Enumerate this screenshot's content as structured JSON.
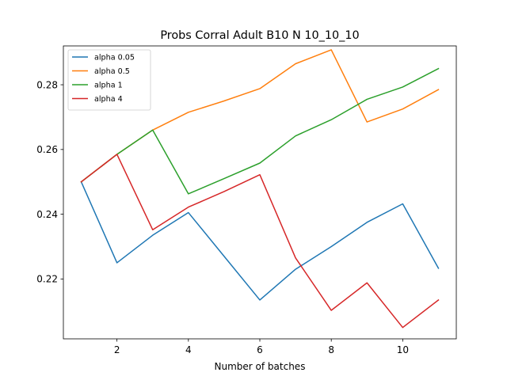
{
  "chart_data": {
    "type": "line",
    "title": "Probs Corral Adult B10 N 10_10_10",
    "xlabel": "Number of batches",
    "ylabel": "",
    "xlim": [
      0.5,
      11.5
    ],
    "ylim": [
      0.2015,
      0.292
    ],
    "x": [
      1,
      2,
      3,
      4,
      5,
      6,
      7,
      8,
      9,
      10,
      11
    ],
    "xticks": [
      2,
      4,
      6,
      8,
      10
    ],
    "xtick_labels": [
      "2",
      "4",
      "6",
      "8",
      "10"
    ],
    "yticks": [
      0.22,
      0.24,
      0.26,
      0.28
    ],
    "ytick_labels": [
      "0.22",
      "0.24",
      "0.26",
      "0.28"
    ],
    "grid": false,
    "legend_position": "top-left",
    "series": [
      {
        "name": "alpha 0.05",
        "color": "#1f77b4",
        "values": [
          0.25,
          0.225,
          0.2335,
          0.2405,
          0.227,
          0.2135,
          0.223,
          0.23,
          0.2375,
          0.2432,
          0.2233
        ]
      },
      {
        "name": "alpha 0.5",
        "color": "#ff7f0e",
        "values": [
          0.25,
          0.2585,
          0.266,
          0.2715,
          0.275,
          0.2788,
          0.2865,
          0.2908,
          0.2685,
          0.2725,
          0.2785
        ]
      },
      {
        "name": "alpha 1",
        "color": "#2ca02c",
        "values": [
          0.25,
          0.2585,
          0.266,
          0.2463,
          0.251,
          0.2558,
          0.2642,
          0.2692,
          0.2755,
          0.2793,
          0.285
        ]
      },
      {
        "name": "alpha 4",
        "color": "#d62728",
        "values": [
          0.25,
          0.2585,
          0.2352,
          0.2422,
          0.247,
          0.2522,
          0.2265,
          0.2103,
          0.2188,
          0.205,
          0.2135
        ]
      }
    ]
  }
}
